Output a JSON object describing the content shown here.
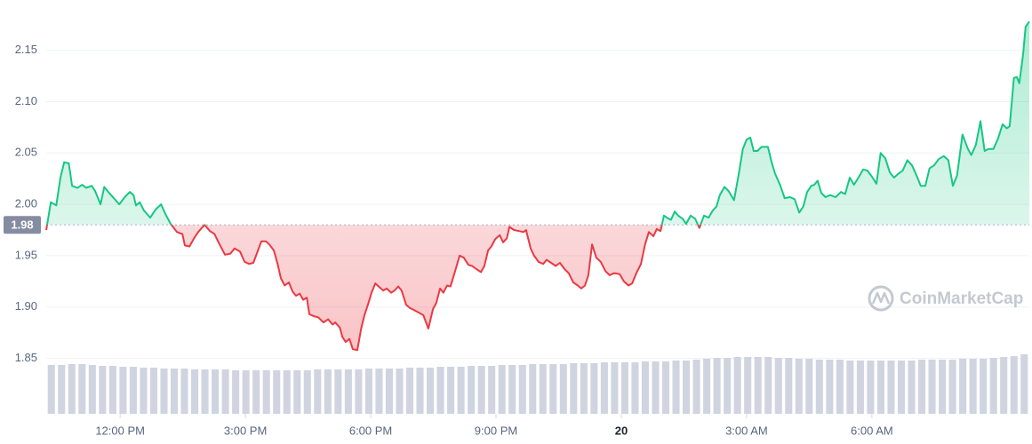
{
  "chart_data": {
    "type": "baseline-line",
    "watermark": "CoinMarketCap",
    "baseline": 1.98,
    "up_color": "#16c784",
    "down_color": "#ea3943",
    "xlim": [
      10.23,
      33.77
    ],
    "xticks": [
      {
        "value": 12,
        "label": "12:00 PM"
      },
      {
        "value": 15,
        "label": "3:00 PM"
      },
      {
        "value": 18,
        "label": "6:00 PM"
      },
      {
        "value": 21,
        "label": "9:00 PM"
      },
      {
        "value": 24,
        "label": "20"
      },
      {
        "value": 27,
        "label": "3:00 AM"
      },
      {
        "value": 30,
        "label": "6:00 AM"
      }
    ],
    "ylim": [
      1.796,
      2.199
    ],
    "yticks": [
      1.85,
      {
        "value": 1.9,
        "label": "1.90"
      },
      1.95,
      {
        "value": 2,
        "label": "2.00"
      },
      2.05,
      {
        "value": 2.1,
        "label": "2.10"
      },
      2.15
    ],
    "grid": true,
    "x": [
      10.23,
      10.34,
      10.47,
      10.57,
      10.66,
      10.77,
      10.85,
      10.98,
      11.09,
      11.19,
      11.32,
      11.4,
      11.53,
      11.62,
      11.74,
      11.85,
      11.98,
      12.11,
      12.23,
      12.32,
      12.38,
      12.47,
      12.57,
      12.72,
      12.85,
      12.98,
      13.09,
      13.21,
      13.36,
      13.49,
      13.55,
      13.66,
      13.77,
      13.87,
      14.02,
      14.15,
      14.26,
      14.38,
      14.51,
      14.64,
      14.74,
      14.87,
      14.98,
      15.09,
      15.19,
      15.28,
      15.38,
      15.49,
      15.57,
      15.68,
      15.77,
      15.85,
      15.94,
      16.04,
      16.13,
      16.21,
      16.3,
      16.38,
      16.47,
      16.53,
      16.64,
      16.74,
      16.87,
      16.98,
      17.09,
      17.15,
      17.26,
      17.32,
      17.4,
      17.49,
      17.57,
      17.68,
      17.77,
      17.85,
      17.94,
      18.02,
      18.11,
      18.19,
      18.3,
      18.38,
      18.49,
      18.57,
      18.66,
      18.74,
      18.85,
      18.94,
      19.04,
      19.13,
      19.26,
      19.38,
      19.49,
      19.57,
      19.66,
      19.74,
      19.83,
      19.91,
      20.02,
      20.13,
      20.23,
      20.34,
      20.43,
      20.53,
      20.64,
      20.72,
      20.81,
      20.89,
      20.98,
      21.09,
      21.17,
      21.26,
      21.32,
      21.43,
      21.55,
      21.66,
      21.72,
      21.83,
      21.91,
      22.02,
      22.13,
      22.21,
      22.32,
      22.43,
      22.53,
      22.64,
      22.74,
      22.85,
      22.96,
      23.04,
      23.13,
      23.21,
      23.3,
      23.4,
      23.51,
      23.62,
      23.72,
      23.83,
      23.96,
      24.06,
      24.17,
      24.26,
      24.36,
      24.47,
      24.57,
      24.66,
      24.77,
      24.85,
      24.94,
      25.02,
      25.13,
      25.19,
      25.28,
      25.36,
      25.47,
      25.55,
      25.66,
      25.77,
      25.87,
      25.98,
      26.09,
      26.19,
      26.28,
      26.36,
      26.47,
      26.57,
      26.7,
      26.81,
      26.91,
      27.0,
      27.09,
      27.17,
      27.26,
      27.36,
      27.51,
      27.6,
      27.68,
      27.81,
      27.91,
      28.04,
      28.15,
      28.26,
      28.36,
      28.45,
      28.55,
      28.62,
      28.7,
      28.79,
      28.89,
      29.0,
      29.13,
      29.26,
      29.36,
      29.47,
      29.57,
      29.68,
      29.79,
      29.89,
      30.0,
      30.11,
      30.21,
      30.32,
      30.43,
      30.53,
      30.64,
      30.74,
      30.85,
      30.96,
      31.06,
      31.17,
      31.28,
      31.38,
      31.49,
      31.6,
      31.72,
      31.83,
      31.94,
      32.04,
      32.17,
      32.3,
      32.38,
      32.49,
      32.6,
      32.7,
      32.79,
      32.91,
      33.02,
      33.13,
      33.23,
      33.3,
      33.4,
      33.47,
      33.53,
      33.62,
      33.68,
      33.77
    ],
    "values": [
      1.975,
      2.002,
      1.999,
      2.026,
      2.041,
      2.04,
      2.018,
      2.016,
      2.019,
      2.016,
      2.018,
      2.013,
      2.0,
      2.017,
      2.011,
      2.006,
      2.0,
      2.007,
      2.012,
      2.009,
      1.999,
      2.002,
      1.994,
      1.987,
      1.995,
      2.0,
      1.99,
      1.981,
      1.973,
      1.971,
      1.96,
      1.959,
      1.967,
      1.973,
      1.98,
      1.974,
      1.971,
      1.961,
      1.951,
      1.952,
      1.957,
      1.954,
      1.944,
      1.942,
      1.943,
      1.953,
      1.964,
      1.964,
      1.961,
      1.955,
      1.942,
      1.928,
      1.921,
      1.924,
      1.915,
      1.911,
      1.913,
      1.907,
      1.909,
      1.893,
      1.891,
      1.89,
      1.885,
      1.888,
      1.883,
      1.885,
      1.88,
      1.871,
      1.866,
      1.869,
      1.859,
      1.858,
      1.879,
      1.892,
      1.903,
      1.914,
      1.923,
      1.92,
      1.916,
      1.918,
      1.914,
      1.916,
      1.92,
      1.916,
      1.902,
      1.899,
      1.897,
      1.895,
      1.892,
      1.879,
      1.898,
      1.904,
      1.918,
      1.914,
      1.921,
      1.92,
      1.935,
      1.95,
      1.948,
      1.941,
      1.94,
      1.937,
      1.934,
      1.94,
      1.955,
      1.959,
      1.966,
      1.97,
      1.963,
      1.967,
      1.978,
      1.975,
      1.974,
      1.973,
      1.975,
      1.957,
      1.95,
      1.944,
      1.942,
      1.946,
      1.943,
      1.94,
      1.943,
      1.937,
      1.933,
      1.924,
      1.921,
      1.918,
      1.921,
      1.931,
      1.961,
      1.948,
      1.944,
      1.935,
      1.931,
      1.933,
      1.932,
      1.925,
      1.921,
      1.923,
      1.933,
      1.942,
      1.961,
      1.973,
      1.969,
      1.976,
      1.974,
      1.989,
      1.986,
      1.985,
      1.993,
      1.989,
      1.986,
      1.981,
      1.989,
      1.986,
      1.977,
      1.989,
      1.987,
      1.994,
      1.998,
      2.009,
      2.017,
      2.013,
      2.004,
      2.029,
      2.054,
      2.063,
      2.065,
      2.052,
      2.052,
      2.056,
      2.056,
      2.041,
      2.03,
      2.018,
      2.006,
      2.007,
      2.005,
      1.992,
      1.998,
      2.012,
      2.018,
      2.019,
      2.023,
      2.011,
      2.007,
      2.009,
      2.007,
      2.012,
      2.01,
      2.026,
      2.019,
      2.026,
      2.034,
      2.033,
      2.027,
      2.02,
      2.05,
      2.045,
      2.031,
      2.026,
      2.03,
      2.033,
      2.043,
      2.038,
      2.029,
      2.018,
      2.018,
      2.035,
      2.038,
      2.044,
      2.047,
      2.043,
      2.018,
      2.028,
      2.068,
      2.054,
      2.048,
      2.058,
      2.081,
      2.052,
      2.054,
      2.054,
      2.064,
      2.078,
      2.074,
      2.076,
      2.123,
      2.124,
      2.118,
      2.146,
      2.173,
      2.178
    ],
    "volume": {
      "color": "#cfd4e0",
      "vlim": [
        0,
        100
      ],
      "values": [
        55,
        55,
        56,
        56,
        55,
        54,
        54,
        53,
        53,
        52,
        52,
        51,
        51,
        51,
        50,
        50,
        50,
        50,
        49,
        49,
        49,
        49,
        49,
        49,
        49,
        49,
        50,
        50,
        50,
        50,
        50,
        51,
        51,
        51,
        51,
        52,
        52,
        52,
        53,
        53,
        53,
        54,
        54,
        54,
        55,
        55,
        55,
        56,
        56,
        56,
        56,
        57,
        57,
        57,
        58,
        58,
        58,
        58,
        59,
        59,
        59,
        60,
        60,
        61,
        62,
        63,
        63,
        64,
        64,
        64,
        64,
        63,
        63,
        62,
        62,
        61,
        61,
        61,
        60,
        60,
        60,
        60,
        60,
        60,
        60,
        61,
        61,
        61,
        61,
        62,
        62,
        62,
        63,
        64,
        65,
        67
      ]
    }
  }
}
